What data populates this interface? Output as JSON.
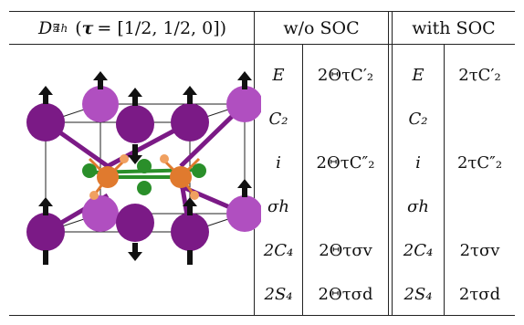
{
  "header": {
    "group_main": "D",
    "group_sup": "5",
    "group_sub": "4h",
    "tau_label": "τ",
    "tau_value": "= [1/2, 1/2, 0])",
    "col_wo_soc": "w/o SOC",
    "col_with_soc": "with SOC"
  },
  "rows": [
    {
      "op": "E",
      "wo": "2ΘτC′₂",
      "wi_op": "E",
      "wi": "2τC′₂"
    },
    {
      "op": "C₂",
      "wo": "",
      "wi_op": "C₂",
      "wi": ""
    },
    {
      "op": "i",
      "wo": "2ΘτC″₂",
      "wi_op": "i",
      "wi": "2τC″₂"
    },
    {
      "op": "σh",
      "wo": "",
      "wi_op": "σh",
      "wi": ""
    },
    {
      "op": "2C₄",
      "wo": "2Θτσv",
      "wi_op": "2C₄",
      "wi": "2τσv"
    },
    {
      "op": "2S₄",
      "wo": "2Θτσd",
      "wi_op": "2S₄",
      "wi": "2τσd"
    }
  ],
  "colors": {
    "purple_atom": "#7b1a86",
    "light_purple_atom": "#b04fc0",
    "orange_atom": "#e07a2e",
    "green_atom": "#2a8f2a",
    "spin_arrow": "#111111"
  }
}
